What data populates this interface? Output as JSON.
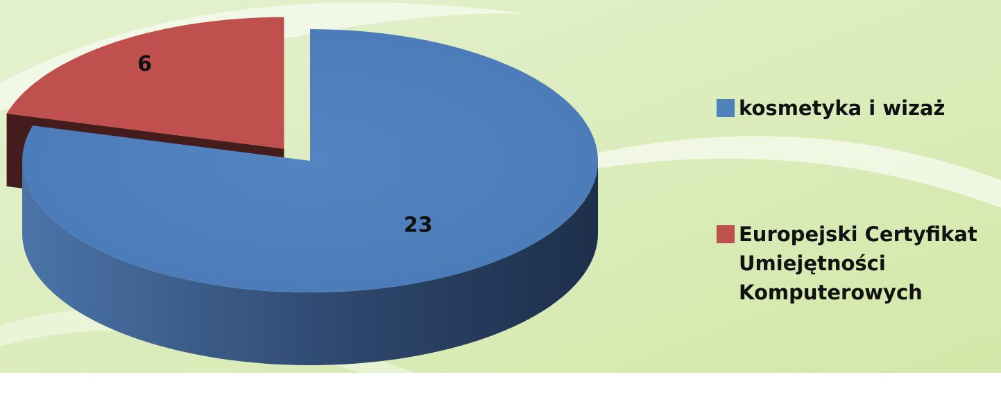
{
  "chart_data": {
    "type": "pie",
    "categories": [
      "kosmetyka i wizaż",
      "Europejski Certyfikat Umiejętności Komputerowych"
    ],
    "values": [
      23,
      6
    ],
    "colors": [
      "#4f81bd",
      "#c0504d"
    ],
    "legend": "right"
  }
}
